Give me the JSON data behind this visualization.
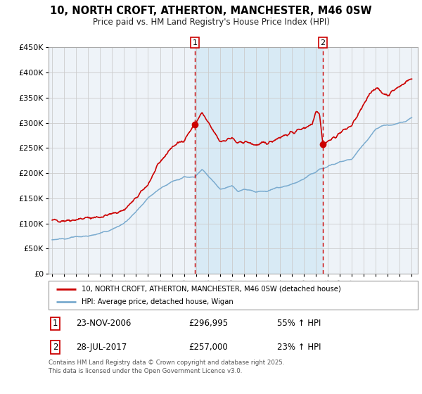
{
  "title": "10, NORTH CROFT, ATHERTON, MANCHESTER, M46 0SW",
  "subtitle": "Price paid vs. HM Land Registry's House Price Index (HPI)",
  "legend_line1": "10, NORTH CROFT, ATHERTON, MANCHESTER, M46 0SW (detached house)",
  "legend_line2": "HPI: Average price, detached house, Wigan",
  "marker1_date": "23-NOV-2006",
  "marker1_price": "£296,995",
  "marker1_hpi": "55% ↑ HPI",
  "marker2_date": "28-JUL-2017",
  "marker2_price": "£257,000",
  "marker2_hpi": "23% ↑ HPI",
  "footer": "Contains HM Land Registry data © Crown copyright and database right 2025.\nThis data is licensed under the Open Government Licence v3.0.",
  "vline1_x": 2006.9,
  "vline2_x": 2017.58,
  "shade_start": 2006.9,
  "shade_end": 2017.58,
  "ylim": [
    0,
    450000
  ],
  "xlim": [
    1994.7,
    2025.5
  ],
  "bg_color": "#eef3f8",
  "red_color": "#cc0000",
  "blue_color": "#7aabcf",
  "shade_color": "#d8eaf5",
  "grid_color": "#cccccc",
  "marker1_year": 2006.9,
  "marker1_value": 296995,
  "marker2_year": 2017.58,
  "marker2_value": 257000
}
